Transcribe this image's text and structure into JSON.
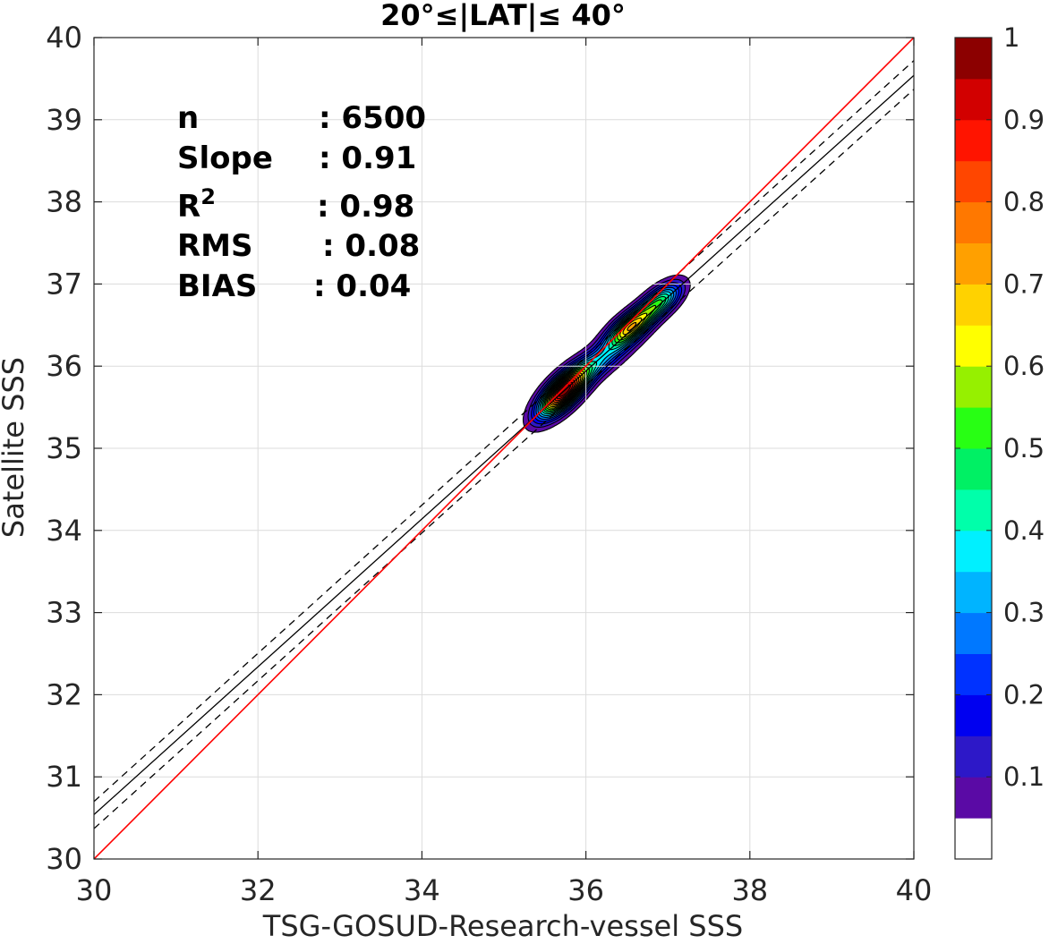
{
  "chart_data": {
    "type": "contour",
    "title": "20°≤|LAT|≤ 40°",
    "xlabel": "TSG-GOSUD-Research-vessel SSS",
    "ylabel": "Satellite SSS",
    "xlim": [
      30,
      40
    ],
    "ylim": [
      30,
      40
    ],
    "xticks": [
      "30",
      "32",
      "34",
      "36",
      "38",
      "40"
    ],
    "yticks": [
      "30",
      "31",
      "32",
      "33",
      "34",
      "35",
      "36",
      "37",
      "38",
      "39",
      "40"
    ],
    "grid": true,
    "stats": [
      {
        "label": "n",
        "sup": "",
        "value": ": 6500"
      },
      {
        "label": "Slope",
        "sup": "",
        "value": ": 0.91"
      },
      {
        "label": "R",
        "sup": "2",
        "value": ": 0.98"
      },
      {
        "label": "RMS",
        "sup": "",
        "value": ": 0.08"
      },
      {
        "label": "BIAS",
        "sup": "",
        "value": ": 0.04"
      }
    ],
    "identity_line": {
      "x": [
        30,
        40
      ],
      "y": [
        30,
        40
      ],
      "color": "#ff0000"
    },
    "fit_line": {
      "x": [
        30,
        40
      ],
      "y": [
        30.54,
        39.54
      ],
      "color": "#000000"
    },
    "fit_bounds": [
      {
        "x": [
          30,
          40
        ],
        "y": [
          30.7,
          39.72
        ],
        "style": "dashed"
      },
      {
        "x": [
          30,
          40
        ],
        "y": [
          30.37,
          39.37
        ],
        "style": "dashed"
      }
    ],
    "density": {
      "peaks": [
        {
          "x": 35.72,
          "y": 35.68,
          "value": 1.0,
          "sx": 0.2,
          "sy": 0.2,
          "rho": 0.7
        },
        {
          "x": 36.55,
          "y": 36.48,
          "value": 0.7,
          "sx": 0.2,
          "sy": 0.17,
          "rho": 0.7
        },
        {
          "x": 36.92,
          "y": 36.8,
          "value": 0.45,
          "sx": 0.17,
          "sy": 0.15,
          "rho": 0.6
        },
        {
          "x": 36.15,
          "y": 36.05,
          "value": 0.3,
          "sx": 0.28,
          "sy": 0.22,
          "rho": 0.8
        }
      ],
      "min_level": 0.05
    },
    "colorbar": {
      "min": 0,
      "max": 1,
      "ticks": [
        "0.1",
        "0.2",
        "0.3",
        "0.4",
        "0.5",
        "0.6",
        "0.7",
        "0.8",
        "0.9",
        "1"
      ],
      "colors": [
        "#ffffff",
        "#5a0aa5",
        "#2d18c8",
        "#0000f0",
        "#0032ff",
        "#0078ff",
        "#00b4ff",
        "#00f0ff",
        "#00ffaa",
        "#00f064",
        "#28ff14",
        "#96f000",
        "#ffff00",
        "#ffd200",
        "#ffa000",
        "#ff7800",
        "#ff4600",
        "#ff1400",
        "#d20000",
        "#8c0000"
      ]
    }
  }
}
